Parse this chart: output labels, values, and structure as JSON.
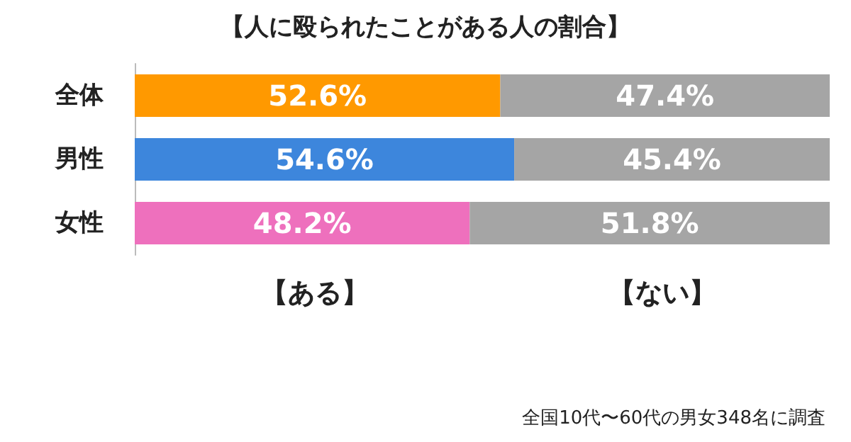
{
  "chart_data": {
    "type": "bar",
    "orientation": "horizontal",
    "stacked": true,
    "title": "【人に殴られたことがある人の割合】",
    "categories": [
      "全体",
      "男性",
      "女性"
    ],
    "series": [
      {
        "name": "【ある】",
        "colors": [
          "#ff9900",
          "#3d86dc",
          "#ee70bd"
        ],
        "values": [
          52.6,
          54.6,
          48.2
        ],
        "value_labels": [
          "52.6%",
          "54.6%",
          "48.2%"
        ]
      },
      {
        "name": "【ない】",
        "color": "#a5a5a5",
        "values": [
          47.4,
          45.4,
          51.8
        ],
        "value_labels": [
          "47.4%",
          "45.4%",
          "51.8%"
        ]
      }
    ],
    "xlim": [
      0,
      100
    ],
    "tick_labels": "y",
    "legend": false,
    "annotations": [
      "全国10代〜60代の男女348名に調査"
    ]
  }
}
